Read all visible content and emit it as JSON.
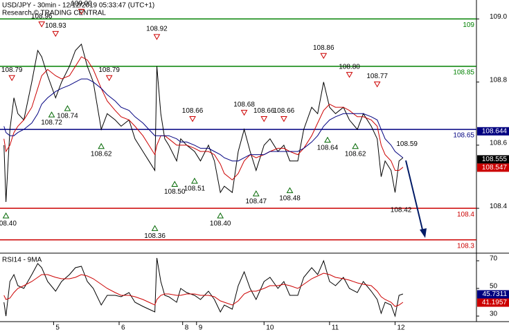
{
  "chart_data": [
    {
      "type": "line",
      "title": "USD/JPY - 30min - 12/12/2019 05:33:47 (UTC+1)",
      "subtitle": "Research © TRADING CENTRAL",
      "xlim": [
        0,
        240
      ],
      "ylim": [
        108.26,
        109.06
      ],
      "yticks": [
        {
          "value": 109.0,
          "label": "109.0"
        },
        108.8,
        108.6,
        108.4
      ],
      "x": [
        2,
        3,
        5,
        7,
        9,
        12,
        16,
        19,
        21,
        24,
        28,
        31,
        35,
        38,
        41,
        44,
        47,
        51,
        54,
        58,
        61,
        65,
        68,
        72,
        75,
        78,
        79,
        81,
        83,
        85,
        89,
        91,
        94,
        98,
        101,
        105,
        108,
        111,
        113,
        117,
        120,
        123,
        126,
        129,
        133,
        136,
        140,
        143,
        146,
        150,
        153,
        157,
        160,
        163,
        166,
        169,
        173,
        176,
        180,
        183,
        187,
        190,
        192,
        194,
        197,
        199,
        201,
        203
      ],
      "series": [
        {
          "color": "#000000",
          "values": [
            108.6,
            108.42,
            108.65,
            108.75,
            108.7,
            108.68,
            108.8,
            108.9,
            108.88,
            108.82,
            108.75,
            108.8,
            108.85,
            108.9,
            108.92,
            108.85,
            108.8,
            108.65,
            108.7,
            108.68,
            108.66,
            108.68,
            108.62,
            108.58,
            108.55,
            108.52,
            108.85,
            108.7,
            108.62,
            108.6,
            108.55,
            108.62,
            108.6,
            108.58,
            108.55,
            108.6,
            108.55,
            108.45,
            108.47,
            108.45,
            108.58,
            108.65,
            108.58,
            108.52,
            108.6,
            108.62,
            108.58,
            108.6,
            108.55,
            108.55,
            108.65,
            108.72,
            108.7,
            108.8,
            108.72,
            108.7,
            108.72,
            108.68,
            108.65,
            108.7,
            108.66,
            108.62,
            108.5,
            108.55,
            108.52,
            108.45,
            108.55,
            108.56
          ]
        },
        {
          "color": "#cc0000",
          "values": [
            108.62,
            108.58,
            108.6,
            108.64,
            108.66,
            108.68,
            108.72,
            108.78,
            108.82,
            108.84,
            108.82,
            108.81,
            108.82,
            108.85,
            108.88,
            108.87,
            108.84,
            108.78,
            108.74,
            108.71,
            108.69,
            108.68,
            108.66,
            108.63,
            108.6,
            108.57,
            108.6,
            108.63,
            108.63,
            108.62,
            108.6,
            108.6,
            108.6,
            108.59,
            108.58,
            108.58,
            108.57,
            108.54,
            108.51,
            108.49,
            108.51,
            108.55,
            108.57,
            108.56,
            108.57,
            108.58,
            108.59,
            108.59,
            108.58,
            108.57,
            108.59,
            108.63,
            108.67,
            108.71,
            108.73,
            108.72,
            108.72,
            108.71,
            108.69,
            108.69,
            108.68,
            108.66,
            108.6,
            108.57,
            108.55,
            108.52,
            108.52,
            108.53
          ]
        },
        {
          "color": "#000080",
          "values": [
            108.66,
            108.64,
            108.63,
            108.63,
            108.64,
            108.65,
            108.67,
            108.7,
            108.73,
            108.75,
            108.77,
            108.78,
            108.79,
            108.8,
            108.81,
            108.81,
            108.8,
            108.78,
            108.76,
            108.74,
            108.72,
            108.71,
            108.69,
            108.67,
            108.65,
            108.63,
            108.63,
            108.63,
            108.63,
            108.63,
            108.62,
            108.61,
            108.61,
            108.6,
            108.59,
            108.59,
            108.58,
            108.57,
            108.56,
            108.55,
            108.55,
            108.56,
            108.57,
            108.57,
            108.57,
            108.58,
            108.58,
            108.58,
            108.58,
            108.58,
            108.59,
            108.61,
            108.63,
            108.66,
            108.68,
            108.69,
            108.7,
            108.7,
            108.7,
            108.7,
            108.69,
            108.68,
            108.65,
            108.62,
            108.6,
            108.58,
            108.57,
            108.56
          ]
        }
      ],
      "levels": [
        {
          "value": 109,
          "label": "109",
          "color": "#008000"
        },
        {
          "value": 108.85,
          "label": "108.85",
          "color": "#008000"
        },
        {
          "value": 108.65,
          "label": "108.65",
          "color": "#000080"
        },
        {
          "value": 108.4,
          "label": "108.4",
          "color": "#cc0000"
        },
        {
          "value": 108.3,
          "label": "108.3",
          "color": "#cc0000"
        }
      ],
      "annotations": [
        {
          "x": 6,
          "value": 108.79,
          "label": "108.79",
          "kind": "high"
        },
        {
          "x": 21,
          "value": 108.96,
          "label": "108.96",
          "kind": "high"
        },
        {
          "x": 28,
          "value": 108.93,
          "label": "108.93",
          "kind": "high"
        },
        {
          "x": 41,
          "value": 109.0,
          "label": "109.00",
          "kind": "high"
        },
        {
          "x": 55,
          "value": 108.79,
          "label": "108.79",
          "kind": "high"
        },
        {
          "x": 79,
          "value": 108.92,
          "label": "108.92",
          "kind": "high"
        },
        {
          "x": 97,
          "value": 108.66,
          "label": "108.66",
          "kind": "high"
        },
        {
          "x": 123,
          "value": 108.68,
          "label": "108.68",
          "kind": "high"
        },
        {
          "x": 133,
          "value": 108.66,
          "label": "108.66",
          "kind": "high"
        },
        {
          "x": 143,
          "value": 108.66,
          "label": "108.66",
          "kind": "high"
        },
        {
          "x": 163,
          "value": 108.86,
          "label": "108.86",
          "kind": "high"
        },
        {
          "x": 176,
          "value": 108.8,
          "label": "108.80",
          "kind": "high"
        },
        {
          "x": 190,
          "value": 108.77,
          "label": "108.77",
          "kind": "high"
        },
        {
          "x": 3,
          "value": 108.4,
          "label": "108.40",
          "kind": "low"
        },
        {
          "x": 26,
          "value": 108.72,
          "label": "108.72",
          "kind": "low"
        },
        {
          "x": 34,
          "value": 108.74,
          "label": "108.74",
          "kind": "low"
        },
        {
          "x": 51,
          "value": 108.62,
          "label": "108.62",
          "kind": "low"
        },
        {
          "x": 78,
          "value": 108.36,
          "label": "108.36",
          "kind": "low"
        },
        {
          "x": 88,
          "value": 108.5,
          "label": "108.50",
          "kind": "low"
        },
        {
          "x": 98,
          "value": 108.51,
          "label": "108.51",
          "kind": "low"
        },
        {
          "x": 111,
          "value": 108.4,
          "label": "108.40",
          "kind": "low"
        },
        {
          "x": 129,
          "value": 108.47,
          "label": "108.47",
          "kind": "low"
        },
        {
          "x": 146,
          "value": 108.48,
          "label": "108.48",
          "kind": "low"
        },
        {
          "x": 165,
          "value": 108.64,
          "label": "108.64",
          "kind": "low"
        },
        {
          "x": 179,
          "value": 108.62,
          "label": "108.62",
          "kind": "low"
        },
        {
          "x": 202,
          "value": 108.42,
          "label": "108.42",
          "kind": "mark-low"
        },
        {
          "x": 205,
          "value": 108.59,
          "label": "108.59",
          "kind": "mark-high"
        }
      ],
      "tags": [
        {
          "value": 108.644,
          "color": "#000080"
        },
        {
          "value": 108.555,
          "color": "#000000"
        },
        {
          "value": 108.547,
          "color": "#cc0000"
        }
      ]
    },
    {
      "type": "line",
      "title": "RSI14 - 9MA",
      "xlim": [
        0,
        240
      ],
      "ylim": [
        26,
        74.5
      ],
      "yticks": [
        70,
        50,
        30
      ],
      "xticks": [
        {
          "value": 27,
          "label": "5"
        },
        {
          "value": 60,
          "label": "6"
        },
        {
          "value": 92,
          "label": "8"
        },
        {
          "value": 99,
          "label": "9"
        },
        {
          "value": 133,
          "label": "10"
        },
        {
          "value": 166,
          "label": "11"
        },
        {
          "value": 199,
          "label": "12"
        }
      ],
      "x": [
        2,
        3,
        5,
        7,
        9,
        12,
        16,
        19,
        21,
        24,
        28,
        31,
        35,
        38,
        41,
        44,
        47,
        51,
        54,
        58,
        61,
        65,
        68,
        72,
        75,
        78,
        79,
        81,
        83,
        85,
        89,
        91,
        94,
        98,
        101,
        105,
        108,
        111,
        113,
        117,
        120,
        123,
        126,
        129,
        133,
        136,
        140,
        143,
        146,
        150,
        153,
        157,
        160,
        163,
        166,
        169,
        173,
        176,
        180,
        183,
        187,
        190,
        192,
        194,
        197,
        199,
        201,
        203
      ],
      "series": [
        {
          "color": "#000000",
          "values": [
            40,
            30,
            55,
            60,
            52,
            50,
            60,
            68,
            65,
            55,
            48,
            55,
            60,
            65,
            66,
            55,
            50,
            38,
            45,
            45,
            44,
            47,
            40,
            37,
            35,
            33,
            72,
            55,
            45,
            44,
            40,
            50,
            47,
            45,
            42,
            48,
            42,
            33,
            38,
            35,
            52,
            62,
            50,
            42,
            55,
            58,
            50,
            55,
            45,
            45,
            58,
            65,
            60,
            70,
            55,
            52,
            58,
            50,
            47,
            55,
            48,
            42,
            32,
            40,
            38,
            30,
            45,
            46
          ]
        },
        {
          "color": "#cc0000",
          "values": [
            45,
            42,
            43,
            47,
            50,
            52,
            55,
            58,
            60,
            60,
            58,
            57,
            57,
            58,
            60,
            59,
            57,
            53,
            50,
            47,
            45,
            45,
            44,
            42,
            40,
            38,
            42,
            45,
            46,
            46,
            45,
            45,
            46,
            46,
            45,
            45,
            44,
            41,
            40,
            38,
            41,
            46,
            48,
            48,
            50,
            52,
            52,
            53,
            52,
            50,
            53,
            57,
            59,
            61,
            60,
            58,
            57,
            56,
            54,
            53,
            52,
            48,
            44,
            42,
            40,
            37,
            38,
            40
          ]
        }
      ],
      "tags": [
        {
          "value": 45.7311,
          "color": "#000080"
        },
        {
          "value": 41.1957,
          "color": "#cc0000"
        }
      ]
    }
  ]
}
